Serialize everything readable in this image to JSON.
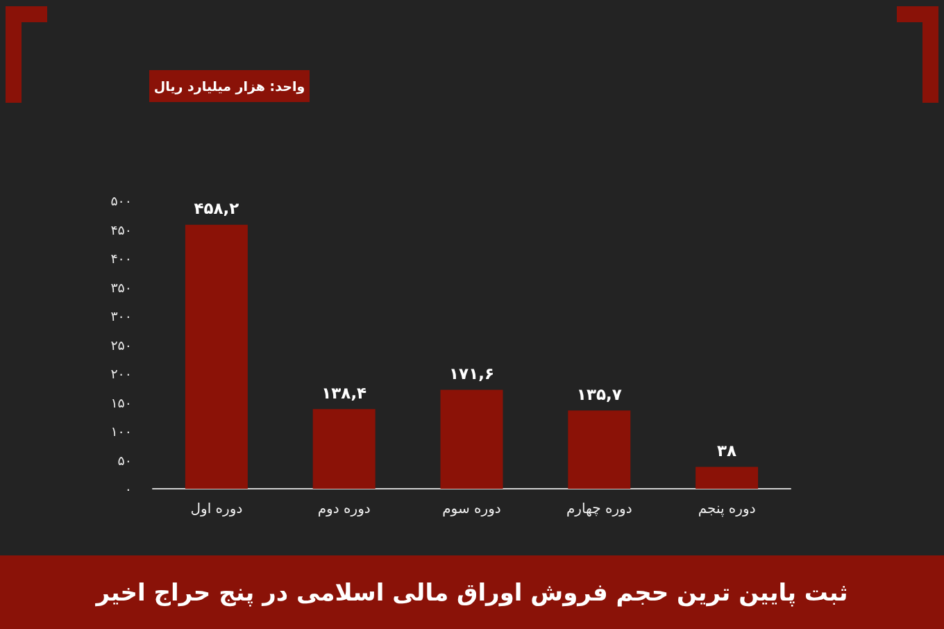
{
  "chart_data": {
    "type": "bar",
    "title": "ثبت پایین ترین حجم فروش اوراق مالی اسلامی در پنج حراج اخیر",
    "annotations": [
      "واحد: هزار میلیارد ریال"
    ],
    "categories": [
      "دوره اول",
      "دوره دوم",
      "دوره سوم",
      "دوره چهارم",
      "دوره پنجم"
    ],
    "values": [
      458.2,
      138.4,
      171.6,
      135.7,
      38
    ],
    "value_labels": [
      "۴۵۸,۲",
      "۱۳۸,۴",
      "۱۷۱,۶",
      "۱۳۵,۷",
      "۳۸"
    ],
    "color": "#8b1207",
    "ylim": [
      0,
      500
    ],
    "yticks": [
      {
        "value": 0,
        "label": "۰"
      },
      {
        "value": 50,
        "label": "۵۰"
      },
      {
        "value": 100,
        "label": "۱۰۰"
      },
      {
        "value": 150,
        "label": "۱۵۰"
      },
      {
        "value": 200,
        "label": "۲۰۰"
      },
      {
        "value": 250,
        "label": "۲۵۰"
      },
      {
        "value": 300,
        "label": "۳۰۰"
      },
      {
        "value": 350,
        "label": "۳۵۰"
      },
      {
        "value": 400,
        "label": "۴۰۰"
      },
      {
        "value": 450,
        "label": "۴۵۰"
      },
      {
        "value": 500,
        "label": "۵۰۰"
      }
    ]
  }
}
